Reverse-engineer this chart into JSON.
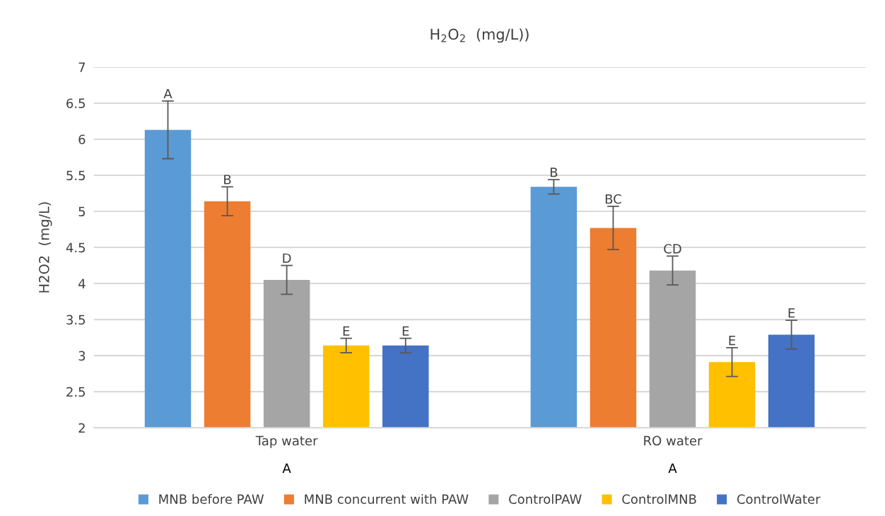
{
  "chart_data": {
    "type": "bar",
    "title": "H$_{2}$O$_{2}$  (mg/L))",
    "ylabel": "H2O2  (mg/L)",
    "categories": [
      "Tap water",
      "RO water"
    ],
    "series": [
      {
        "name": "MNB before PAW",
        "color": "#5b9bd5",
        "values": [
          6.13,
          5.34
        ],
        "errors": [
          0.4,
          0.1
        ],
        "value_labels": [
          "A",
          "B"
        ]
      },
      {
        "name": "MNB concurrent with PAW",
        "color": "#ed7d31",
        "values": [
          5.14,
          4.77
        ],
        "errors": [
          0.2,
          0.3
        ],
        "value_labels": [
          "B",
          "BC"
        ]
      },
      {
        "name": "ControlPAW",
        "color": "#a5a5a5",
        "values": [
          4.05,
          4.18
        ],
        "errors": [
          0.2,
          0.2
        ],
        "value_labels": [
          "D",
          "CD"
        ]
      },
      {
        "name": "ControlMNB",
        "color": "#ffc000",
        "values": [
          3.14,
          2.91
        ],
        "errors": [
          0.1,
          0.2
        ],
        "value_labels": [
          "E",
          "E"
        ]
      },
      {
        "name": "ControlWater",
        "color": "#4472c4",
        "values": [
          3.14,
          3.29
        ],
        "errors": [
          0.1,
          0.2
        ],
        "value_labels": [
          "E",
          "E"
        ]
      }
    ],
    "annotations": [
      "A",
      "A"
    ],
    "ylim": [
      2,
      7
    ],
    "yticks": [
      2,
      2.5,
      3,
      3.5,
      4,
      4.5,
      5,
      5.5,
      6,
      6.5,
      7
    ],
    "grid": "y",
    "legend": "bottom"
  }
}
